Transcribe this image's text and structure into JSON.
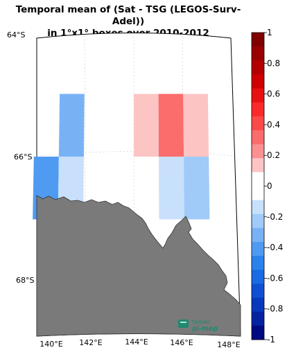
{
  "title": {
    "line1": "Temporal mean of (Sat - TSG (LEGOS-Surv-Adel))",
    "line2": "in 1°x1° boxes over 2010-2012"
  },
  "map": {
    "lon_labels": [
      "140°E",
      "142°E",
      "144°E",
      "146°E",
      "148°E"
    ],
    "lat_labels": [
      "64°S",
      "66°S",
      "68°S"
    ],
    "land_color": "#7a7a7a",
    "boxes": [
      {
        "lon": [
          141,
          142
        ],
        "lat": [
          -65,
          -66
        ],
        "value": -0.3
      },
      {
        "lon": [
          140,
          141
        ],
        "lat": [
          -66,
          -67
        ],
        "value": -0.45
      },
      {
        "lon": [
          141,
          142
        ],
        "lat": [
          -66,
          -67
        ],
        "value": -0.1
      },
      {
        "lon": [
          144,
          145
        ],
        "lat": [
          -65,
          -66
        ],
        "value": 0.1
      },
      {
        "lon": [
          145,
          146
        ],
        "lat": [
          -65,
          -66
        ],
        "value": 0.3
      },
      {
        "lon": [
          146,
          147
        ],
        "lat": [
          -65,
          -66
        ],
        "value": 0.1
      },
      {
        "lon": [
          145,
          146
        ],
        "lat": [
          -66,
          -67
        ],
        "value": -0.1
      },
      {
        "lon": [
          146,
          147
        ],
        "lat": [
          -66,
          -67
        ],
        "value": -0.25
      }
    ]
  },
  "colorbar": {
    "ticks": [
      "1",
      "0.8",
      "0.6",
      "0.4",
      "0.2",
      "0",
      "-0.2",
      "-0.4",
      "-0.6",
      "-0.8",
      "-1"
    ],
    "colors": [
      "#800000",
      "#9a0000",
      "#b40000",
      "#d00000",
      "#e81010",
      "#fa2a2a",
      "#fb4a4a",
      "#fb6c6c",
      "#fb9090",
      "#fdc4c4",
      "#ffffff",
      "#ffffff",
      "#c8e0fb",
      "#a0caf8",
      "#78b2f5",
      "#4f9bf2",
      "#2a83ec",
      "#1a6ae4",
      "#0f4fd4",
      "#0838bb",
      "#0522a0",
      "#000a80"
    ]
  },
  "logo": {
    "line1": "fadiwo",
    "line2": "pi-mep"
  }
}
